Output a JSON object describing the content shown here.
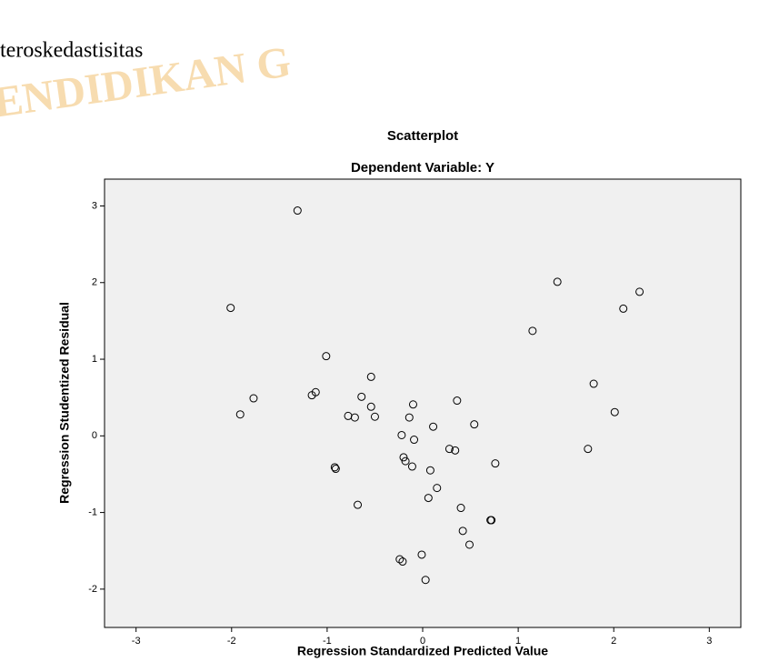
{
  "caption": "teroskedastisitas",
  "watermark": "ITAS PENDIDIKAN G",
  "chart_data": {
    "type": "scatter",
    "title": "Scatterplot",
    "subtitle": "Dependent Variable: Y",
    "x_label": "Regression Standardized Predicted Value",
    "y_label": "Regression Studentized Residual",
    "color": "#000000",
    "background": "#f0f0f0",
    "x": [
      -1.31,
      -2.01,
      1.41,
      2.27,
      2.1,
      1.15,
      -1.01,
      -0.54,
      1.79,
      -1.77,
      -1.12,
      -1.16,
      -0.64,
      0.36,
      -0.1,
      -0.54,
      -1.91,
      -0.78,
      -0.71,
      -0.5,
      -0.14,
      0.11,
      0.54,
      2.01,
      -0.22,
      -0.09,
      0.28,
      0.34,
      1.73,
      -0.2,
      -0.18,
      -0.92,
      -0.91,
      -0.11,
      0.08,
      0.76,
      0.15,
      0.06,
      -0.68,
      0.4,
      0.71,
      0.72,
      0.42,
      0.49,
      -0.24,
      -0.21,
      -0.01,
      0.03
    ],
    "values": [
      2.94,
      1.67,
      2.01,
      1.88,
      1.66,
      1.37,
      1.04,
      0.77,
      0.68,
      0.49,
      0.57,
      0.53,
      0.51,
      0.46,
      0.41,
      0.38,
      0.28,
      0.26,
      0.24,
      0.25,
      0.24,
      0.12,
      0.15,
      0.31,
      0.01,
      -0.05,
      -0.17,
      -0.19,
      -0.17,
      -0.28,
      -0.33,
      -0.41,
      -0.43,
      -0.4,
      -0.45,
      -0.36,
      -0.68,
      -0.81,
      -0.9,
      -0.94,
      -1.1,
      -1.1,
      -1.24,
      -1.42,
      -1.61,
      -1.64,
      -1.55,
      -1.88
    ],
    "xlim": [
      -3.33,
      3.33
    ],
    "xticks": [
      -3,
      -2,
      -1,
      0,
      1,
      2,
      3
    ],
    "ylim": [
      -2.5,
      3.35
    ],
    "yticks": [
      -2,
      -1,
      0,
      1,
      2,
      3
    ]
  }
}
